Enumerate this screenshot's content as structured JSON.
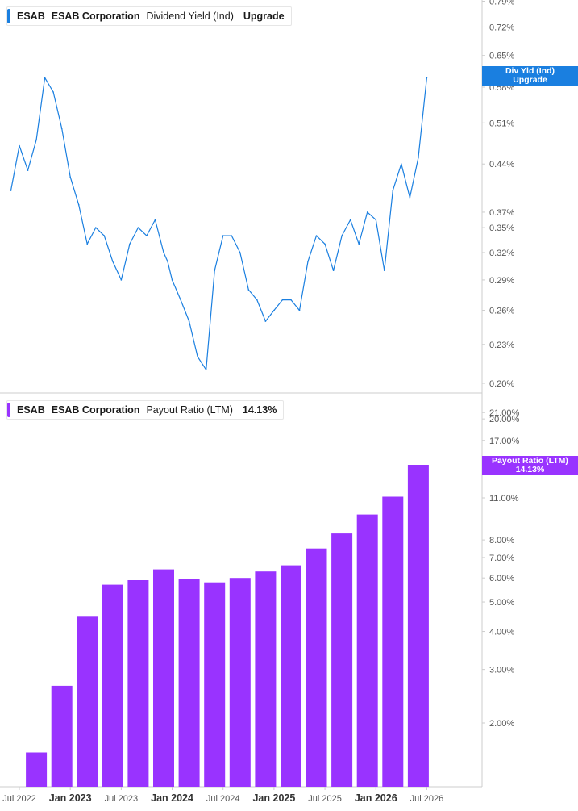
{
  "colors": {
    "yield": "#1a7fe0",
    "payout": "#9933ff",
    "axis": "#cccccc",
    "text": "#555555"
  },
  "top_panel": {
    "legend": {
      "ticker": "ESAB",
      "company": "ESAB Corporation",
      "metric": "Dividend Yield (Ind)",
      "value": "Upgrade"
    },
    "flag": {
      "line1": "Div Yld (Ind)",
      "line2": "Upgrade"
    }
  },
  "bottom_panel": {
    "legend": {
      "ticker": "ESAB",
      "company": "ESAB Corporation",
      "metric": "Payout Ratio (LTM)",
      "value": "14.13%"
    },
    "flag": {
      "line1": "Payout Ratio (LTM)",
      "line2": "14.13%"
    }
  },
  "chart_data": [
    {
      "type": "line",
      "series": [
        {
          "name": "Dividend Yield (Ind)",
          "x": [
            "2022-06",
            "2022-07",
            "2022-08",
            "2022-09",
            "2022-10",
            "2022-11",
            "2022-12",
            "2023-01",
            "2023-02",
            "2023-03",
            "2023-04",
            "2023-05",
            "2023-06",
            "2023-07",
            "2023-08",
            "2023-09",
            "2023-10",
            "2023-11",
            "2023-12",
            "2023-12-15",
            "2024-01",
            "2024-02",
            "2024-03",
            "2024-04",
            "2024-05",
            "2024-06",
            "2024-07",
            "2024-08",
            "2024-09",
            "2024-10",
            "2024-11",
            "2024-12",
            "2025-01",
            "2025-02",
            "2025-03",
            "2025-04",
            "2025-05",
            "2025-06",
            "2025-07",
            "2025-08",
            "2025-09",
            "2025-10",
            "2025-11",
            "2025-12",
            "2026-01",
            "2026-02",
            "2026-03",
            "2026-04",
            "2026-05",
            "2026-06",
            "2026-07"
          ],
          "values": [
            0.4,
            0.47,
            0.43,
            0.48,
            0.6,
            0.57,
            0.5,
            0.42,
            0.38,
            0.33,
            0.35,
            0.34,
            0.31,
            0.29,
            0.33,
            0.35,
            0.34,
            0.36,
            0.32,
            0.31,
            0.29,
            0.27,
            0.25,
            0.22,
            0.21,
            0.3,
            0.34,
            0.34,
            0.32,
            0.28,
            0.27,
            0.25,
            0.26,
            0.27,
            0.27,
            0.26,
            0.31,
            0.34,
            0.33,
            0.3,
            0.34,
            0.36,
            0.33,
            0.37,
            0.36,
            0.3,
            0.4,
            0.44,
            0.39,
            0.45,
            0.6
          ]
        }
      ],
      "y_ticks": [
        "0.79%",
        "0.72%",
        "0.65%",
        "0.58%",
        "0.51%",
        "0.44%",
        "0.37%",
        "0.35%",
        "0.32%",
        "0.29%",
        "0.26%",
        "0.23%",
        "0.20%"
      ],
      "y_scale": "log"
    },
    {
      "type": "bar",
      "series": [
        {
          "name": "Payout Ratio (LTM)",
          "x": [
            "2022-09",
            "2022-12",
            "2023-03",
            "2023-06",
            "2023-09",
            "2023-12",
            "2024-03",
            "2024-06",
            "2024-09",
            "2024-12",
            "2025-03",
            "2025-06",
            "2025-09",
            "2025-12",
            "2026-03",
            "2026-06"
          ],
          "values": [
            1.6,
            2.65,
            4.5,
            5.7,
            5.9,
            6.4,
            5.95,
            5.8,
            6.0,
            6.3,
            6.6,
            7.5,
            8.4,
            9.7,
            11.1,
            14.13
          ]
        }
      ],
      "y_ticks": [
        "21.00%",
        "20.00%",
        "17.00%",
        "11.00%",
        "8.00%",
        "7.00%",
        "6.00%",
        "5.00%",
        "4.00%",
        "3.00%",
        "2.00%"
      ],
      "y_scale": "log",
      "x_ticks": [
        {
          "label": "Jul 2022",
          "major": false,
          "date": "2022-07"
        },
        {
          "label": "Jan 2023",
          "major": true,
          "date": "2023-01"
        },
        {
          "label": "Jul 2023",
          "major": false,
          "date": "2023-07"
        },
        {
          "label": "Jan 2024",
          "major": true,
          "date": "2024-01"
        },
        {
          "label": "Jul 2024",
          "major": false,
          "date": "2024-07"
        },
        {
          "label": "Jan 2025",
          "major": true,
          "date": "2025-01"
        },
        {
          "label": "Jul 2025",
          "major": false,
          "date": "2025-07"
        },
        {
          "label": "Jan 2026",
          "major": true,
          "date": "2026-01"
        },
        {
          "label": "Jul 2026",
          "major": false,
          "date": "2026-07"
        }
      ]
    }
  ]
}
